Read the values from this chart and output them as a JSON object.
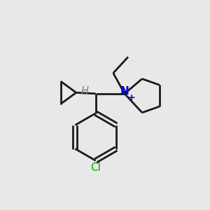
{
  "background_color": "#e8e8e8",
  "bond_color": "#1a1a1a",
  "N_color": "#0000cc",
  "Cl_color": "#00aa00",
  "H_color": "#808080",
  "line_width": 2.0,
  "fig_size": [
    3.0,
    3.0
  ],
  "dpi": 100,
  "xlim": [
    0,
    10
  ],
  "ylim": [
    0,
    10
  ]
}
